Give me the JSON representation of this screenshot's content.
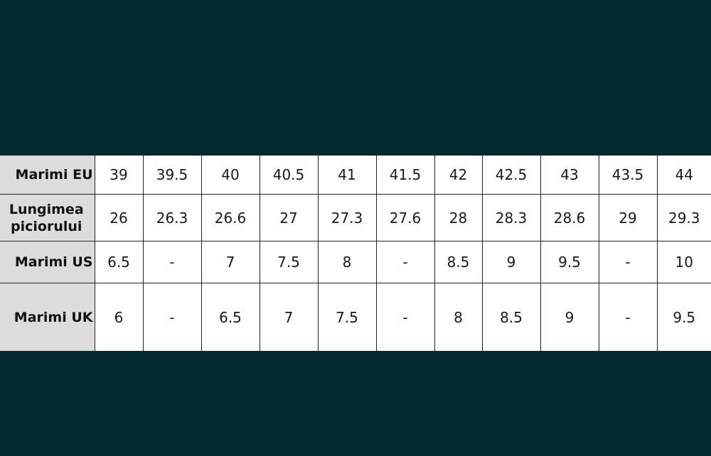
{
  "colors": {
    "background": "#032a30",
    "header_column": "#dcdcdc",
    "cell": "#ffffff"
  },
  "table": {
    "rows": [
      {
        "label": "Marimi EU",
        "values": [
          "39",
          "39.5",
          "40",
          "40.5",
          "41",
          "41.5",
          "42",
          "42.5",
          "43",
          "43.5",
          "44"
        ]
      },
      {
        "label": "Lungimea piciorului",
        "values": [
          "26",
          "26.3",
          "26.6",
          "27",
          "27.3",
          "27.6",
          "28",
          "28.3",
          "28.6",
          "29",
          "29.3"
        ]
      },
      {
        "label": "Marimi US",
        "values": [
          "6.5",
          "-",
          "7",
          "7.5",
          "8",
          "-",
          "8.5",
          "9",
          "9.5",
          "-",
          "10"
        ]
      },
      {
        "label": "Marimi UK",
        "values": [
          "6",
          "-",
          "6.5",
          "7",
          "7.5",
          "-",
          "8",
          "8.5",
          "9",
          "-",
          "9.5"
        ]
      }
    ]
  }
}
